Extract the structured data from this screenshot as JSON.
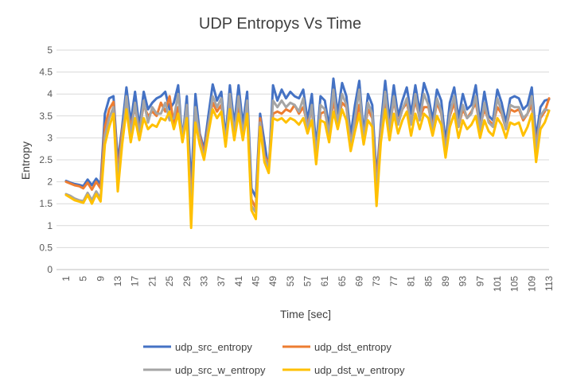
{
  "chart_data": {
    "type": "line",
    "title": "UDP Entropys Vs Time",
    "xlabel": "Time [sec]",
    "ylabel": "Entropy",
    "ylim": [
      0,
      5
    ],
    "yticks": [
      "0",
      "0.5",
      "1",
      "1.5",
      "2",
      "2.5",
      "3",
      "3.5",
      "4",
      "4.5",
      "5"
    ],
    "x": [
      1,
      2,
      3,
      4,
      5,
      6,
      7,
      8,
      9,
      10,
      11,
      12,
      13,
      14,
      15,
      16,
      17,
      18,
      19,
      20,
      21,
      22,
      23,
      24,
      25,
      26,
      27,
      28,
      29,
      30,
      31,
      32,
      33,
      34,
      35,
      36,
      37,
      38,
      39,
      40,
      41,
      42,
      43,
      44,
      45,
      46,
      47,
      48,
      49,
      50,
      51,
      52,
      53,
      54,
      55,
      56,
      57,
      58,
      59,
      60,
      61,
      62,
      63,
      64,
      65,
      66,
      67,
      68,
      69,
      70,
      71,
      72,
      73,
      74,
      75,
      76,
      77,
      78,
      79,
      80,
      81,
      82,
      83,
      84,
      85,
      86,
      87,
      88,
      89,
      90,
      91,
      92,
      93,
      94,
      95,
      96,
      97,
      98,
      99,
      100,
      101,
      102,
      103,
      104,
      105,
      106,
      107,
      108,
      109,
      110,
      111,
      112,
      113
    ],
    "xtick_labels": [
      "1",
      "5",
      "9",
      "13",
      "17",
      "21",
      "25",
      "29",
      "33",
      "37",
      "41",
      "45",
      "49",
      "53",
      "57",
      "61",
      "65",
      "69",
      "73",
      "77",
      "81",
      "85",
      "89",
      "93",
      "97",
      "101",
      "105",
      "109",
      "113"
    ],
    "xtick_values": [
      1,
      5,
      9,
      13,
      17,
      21,
      25,
      29,
      33,
      37,
      41,
      45,
      49,
      53,
      57,
      61,
      65,
      69,
      73,
      77,
      81,
      85,
      89,
      93,
      97,
      101,
      105,
      109,
      113
    ],
    "grid": true,
    "legend_position": "bottom",
    "series": [
      {
        "name": "udp_src_entropy",
        "color": "#4472C4",
        "values": [
          2.02,
          1.98,
          1.95,
          1.93,
          1.9,
          2.05,
          1.92,
          2.07,
          1.95,
          3.55,
          3.9,
          3.95,
          2.45,
          3.25,
          4.15,
          3.35,
          4.05,
          3.25,
          4.05,
          3.65,
          3.8,
          3.9,
          3.95,
          4.05,
          3.65,
          3.8,
          4.2,
          2.95,
          3.95,
          1.85,
          4.0,
          3.1,
          2.75,
          3.5,
          4.22,
          3.85,
          4.05,
          3.0,
          4.2,
          3.3,
          4.2,
          3.3,
          4.05,
          1.85,
          1.65,
          3.55,
          2.9,
          2.25,
          4.2,
          3.85,
          4.1,
          3.9,
          4.05,
          3.95,
          3.9,
          4.1,
          3.4,
          4.0,
          2.8,
          3.95,
          3.85,
          3.25,
          4.35,
          3.55,
          4.25,
          3.95,
          3.05,
          3.75,
          4.3,
          3.1,
          4.0,
          3.75,
          2.1,
          3.3,
          4.3,
          3.4,
          4.2,
          3.5,
          3.85,
          4.15,
          3.55,
          4.2,
          3.6,
          4.25,
          3.95,
          3.4,
          4.1,
          3.85,
          2.9,
          3.8,
          4.15,
          3.45,
          4.0,
          3.65,
          3.75,
          4.2,
          3.35,
          4.05,
          3.5,
          3.4,
          4.1,
          3.8,
          3.35,
          3.9,
          3.95,
          3.9,
          3.65,
          3.75,
          4.15,
          3.0,
          3.7,
          3.85,
          3.88
        ]
      },
      {
        "name": "udp_dst_entropy",
        "color": "#ED7D31",
        "values": [
          2.0,
          1.96,
          1.92,
          1.9,
          1.85,
          1.98,
          1.82,
          2.0,
          1.85,
          3.25,
          3.65,
          3.82,
          2.2,
          3.15,
          3.75,
          3.25,
          3.7,
          3.15,
          3.75,
          3.5,
          3.6,
          3.5,
          3.8,
          3.6,
          3.95,
          3.3,
          3.7,
          3.05,
          3.6,
          1.45,
          3.6,
          3.05,
          2.65,
          3.3,
          3.8,
          3.6,
          3.75,
          2.85,
          3.85,
          3.15,
          3.75,
          3.1,
          3.75,
          1.6,
          1.4,
          3.45,
          2.6,
          2.4,
          3.55,
          3.6,
          3.55,
          3.65,
          3.6,
          3.75,
          3.55,
          3.7,
          3.3,
          3.65,
          2.55,
          3.55,
          3.6,
          3.1,
          3.85,
          3.35,
          3.8,
          3.7,
          2.9,
          3.35,
          3.75,
          3.05,
          3.65,
          3.45,
          1.95,
          3.2,
          3.8,
          3.25,
          3.85,
          3.35,
          3.65,
          3.8,
          3.35,
          3.85,
          3.45,
          3.7,
          3.7,
          3.25,
          3.8,
          3.55,
          2.75,
          3.5,
          3.8,
          3.25,
          3.65,
          3.45,
          3.6,
          3.8,
          3.25,
          3.65,
          3.4,
          3.3,
          3.7,
          3.55,
          3.2,
          3.65,
          3.6,
          3.65,
          3.4,
          3.55,
          3.75,
          2.85,
          3.45,
          3.6,
          3.9
        ]
      },
      {
        "name": "udp_src_w_entropy",
        "color": "#A5A5A5",
        "values": [
          1.72,
          1.68,
          1.62,
          1.58,
          1.56,
          1.75,
          1.58,
          1.78,
          1.62,
          3.05,
          3.45,
          3.7,
          2.05,
          3.0,
          3.95,
          3.05,
          3.8,
          3.05,
          3.85,
          3.35,
          3.7,
          3.55,
          3.55,
          3.8,
          3.4,
          3.45,
          4.0,
          2.95,
          3.75,
          1.2,
          3.7,
          2.95,
          2.55,
          3.25,
          3.95,
          3.7,
          3.9,
          2.85,
          4.0,
          3.1,
          3.95,
          3.05,
          3.85,
          1.45,
          1.3,
          3.35,
          2.55,
          2.3,
          3.85,
          3.7,
          3.85,
          3.7,
          3.8,
          3.75,
          3.6,
          3.9,
          3.15,
          3.75,
          2.6,
          3.75,
          3.65,
          3.05,
          4.1,
          3.3,
          4.0,
          3.75,
          2.8,
          3.45,
          4.1,
          2.95,
          3.8,
          3.55,
          1.75,
          3.1,
          4.05,
          3.15,
          3.95,
          3.3,
          3.65,
          3.9,
          3.3,
          4.0,
          3.4,
          4.0,
          3.75,
          3.15,
          3.9,
          3.6,
          2.65,
          3.55,
          3.95,
          3.25,
          3.75,
          3.45,
          3.55,
          3.95,
          3.15,
          3.8,
          3.35,
          3.25,
          3.9,
          3.6,
          3.2,
          3.75,
          3.7,
          3.7,
          3.45,
          3.55,
          3.95,
          2.7,
          3.5,
          3.65,
          3.62
        ]
      },
      {
        "name": "udp_dst_w_entropy",
        "color": "#FFC000",
        "values": [
          1.7,
          1.64,
          1.58,
          1.55,
          1.52,
          1.7,
          1.5,
          1.72,
          1.55,
          2.85,
          3.25,
          3.55,
          1.78,
          2.85,
          3.65,
          2.9,
          3.45,
          2.95,
          3.45,
          3.2,
          3.3,
          3.25,
          3.45,
          3.4,
          3.6,
          3.2,
          3.55,
          2.9,
          3.45,
          0.95,
          3.35,
          2.85,
          2.5,
          3.1,
          3.65,
          3.45,
          3.6,
          2.8,
          3.65,
          2.95,
          3.55,
          2.95,
          3.55,
          1.35,
          1.15,
          3.25,
          2.45,
          2.2,
          3.45,
          3.4,
          3.45,
          3.35,
          3.45,
          3.4,
          3.3,
          3.45,
          3.1,
          3.4,
          2.4,
          3.4,
          3.35,
          2.9,
          3.6,
          3.2,
          3.65,
          3.4,
          2.7,
          3.15,
          3.55,
          2.85,
          3.4,
          3.25,
          1.45,
          2.9,
          3.65,
          2.95,
          3.55,
          3.1,
          3.4,
          3.6,
          3.05,
          3.55,
          3.2,
          3.55,
          3.45,
          3.05,
          3.5,
          3.3,
          2.55,
          3.25,
          3.55,
          3.0,
          3.4,
          3.2,
          3.3,
          3.5,
          3.0,
          3.4,
          3.15,
          3.05,
          3.45,
          3.3,
          3.0,
          3.35,
          3.3,
          3.35,
          3.05,
          3.25,
          3.55,
          2.45,
          3.2,
          3.35,
          3.62
        ]
      }
    ]
  }
}
